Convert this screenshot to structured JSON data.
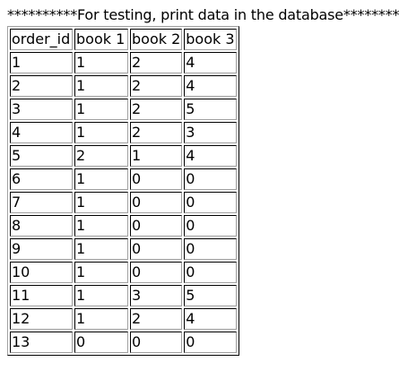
{
  "heading": "**********For testing, print data in the database**********",
  "table": {
    "headers": [
      "order_id",
      "book 1",
      "book 2",
      "book 3"
    ],
    "rows": [
      [
        "1",
        "1",
        "2",
        "4"
      ],
      [
        "2",
        "1",
        "2",
        "4"
      ],
      [
        "3",
        "1",
        "2",
        "5"
      ],
      [
        "4",
        "1",
        "2",
        "3"
      ],
      [
        "5",
        "2",
        "1",
        "4"
      ],
      [
        "6",
        "1",
        "0",
        "0"
      ],
      [
        "7",
        "1",
        "0",
        "0"
      ],
      [
        "8",
        "1",
        "0",
        "0"
      ],
      [
        "9",
        "1",
        "0",
        "0"
      ],
      [
        "10",
        "1",
        "0",
        "0"
      ],
      [
        "11",
        "1",
        "3",
        "5"
      ],
      [
        "12",
        "1",
        "2",
        "4"
      ],
      [
        "13",
        "0",
        "0",
        "0"
      ]
    ]
  }
}
